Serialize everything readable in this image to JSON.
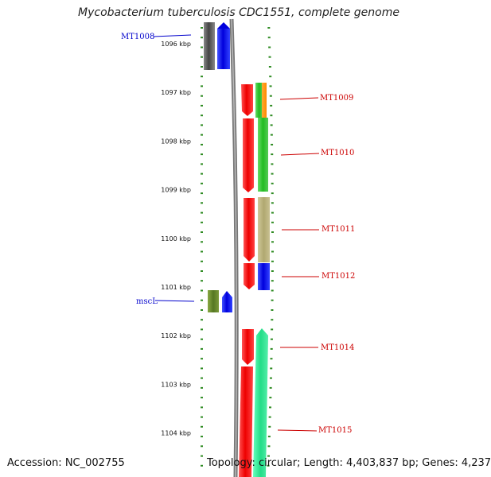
{
  "title": "Mycobacterium tuberculosis CDC1551, complete genome",
  "footer": {
    "accession": "Accession: NC_002755",
    "topology": "Topology: circular; Length: 4,403,837 bp; Genes: 4,237"
  },
  "colors": {
    "backbone": "#808080",
    "tick": "#2e8b22",
    "label_blue": "#0000cc",
    "label_red": "#cc0000"
  },
  "kbp_labels": [
    "1096 kbp",
    "1097 kbp",
    "1098 kbp",
    "1099 kbp",
    "1100 kbp",
    "1101 kbp",
    "1102 kbp",
    "1103 kbp",
    "1104 kbp"
  ],
  "gene_labels": [
    {
      "text": "MT1008",
      "color": "blue"
    },
    {
      "text": "mscL",
      "color": "blue"
    },
    {
      "text": "MT1009",
      "color": "red"
    },
    {
      "text": "MT1010",
      "color": "red"
    },
    {
      "text": "MT1011",
      "color": "red"
    },
    {
      "text": "MT1012",
      "color": "red"
    },
    {
      "text": "MT1014",
      "color": "red"
    },
    {
      "text": "MT1015",
      "color": "red"
    }
  ]
}
